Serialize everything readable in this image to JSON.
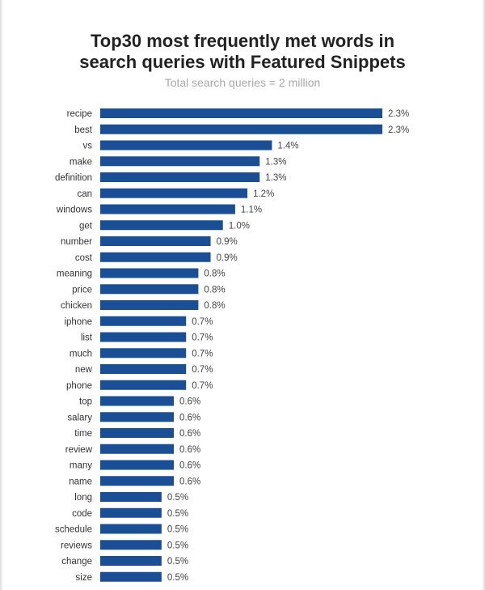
{
  "chart_data": {
    "type": "bar",
    "orientation": "horizontal",
    "title": "Top30 most frequently met words in\nsearch queries with Featured Snippets",
    "subtitle": "Total search queries = 2 million",
    "bar_color": "#1a4f96",
    "categories": [
      "recipe",
      "best",
      "vs",
      "make",
      "definition",
      "can",
      "windows",
      "get",
      "number",
      "cost",
      "meaning",
      "price",
      "chicken",
      "iphone",
      "list",
      "much",
      "new",
      "phone",
      "top",
      "salary",
      "time",
      "review",
      "many",
      "name",
      "long",
      "code",
      "schedule",
      "reviews",
      "change",
      "size"
    ],
    "values": [
      2.3,
      2.3,
      1.4,
      1.3,
      1.3,
      1.2,
      1.1,
      1.0,
      0.9,
      0.9,
      0.8,
      0.8,
      0.8,
      0.7,
      0.7,
      0.7,
      0.7,
      0.7,
      0.6,
      0.6,
      0.6,
      0.6,
      0.6,
      0.6,
      0.5,
      0.5,
      0.5,
      0.5,
      0.5,
      0.5
    ],
    "value_labels": [
      "2.3%",
      "2.3%",
      "1.4%",
      "1.3%",
      "1.3%",
      "1.2%",
      "1.1%",
      "1.0%",
      "0.9%",
      "0.9%",
      "0.8%",
      "0.8%",
      "0.8%",
      "0.7%",
      "0.7%",
      "0.7%",
      "0.7%",
      "0.7%",
      "0.6%",
      "0.6%",
      "0.6%",
      "0.6%",
      "0.6%",
      "0.6%",
      "0.5%",
      "0.5%",
      "0.5%",
      "0.5%",
      "0.5%",
      "0.5%"
    ],
    "unit": "%",
    "xlim": [
      0,
      2.3
    ],
    "grid": false,
    "legend": "none"
  }
}
